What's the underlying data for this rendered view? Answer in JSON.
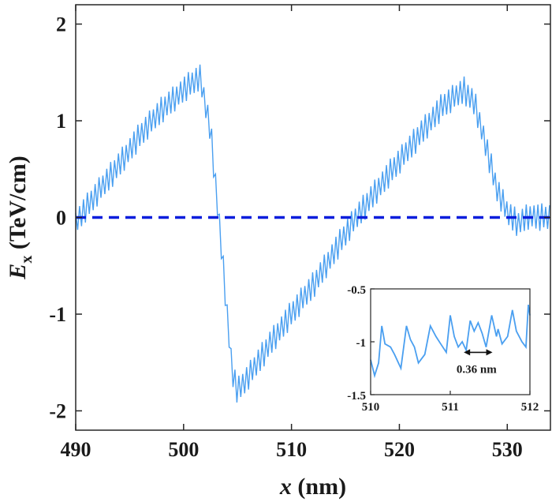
{
  "chart_data": [
    {
      "type": "line",
      "title": "",
      "xlabel": "x (nm)",
      "ylabel": "Ex (TeV/cm)",
      "xlabel_parts": {
        "var": "x",
        "unit": " (nm)"
      },
      "ylabel_parts": {
        "var": "E",
        "sub": "x",
        "unit": " (TeV/cm)"
      },
      "xlim": [
        490,
        534
      ],
      "ylim": [
        -2.2,
        2.2
      ],
      "xticks": [
        490,
        500,
        510,
        520,
        530
      ],
      "yticks": [
        2,
        1,
        0,
        -1,
        -2
      ],
      "xtick_labels": [
        "490",
        "500",
        "510",
        "520",
        "530"
      ],
      "ytick_labels": [
        "2",
        "1",
        "0",
        "-1",
        "-2"
      ],
      "grid": false,
      "series": [
        {
          "style": "solid",
          "color": "#4a9ff0",
          "x": [
            490,
            492,
            494,
            496,
            498,
            500,
            501.5,
            502.5,
            503.5,
            504.5,
            505,
            506,
            508,
            510,
            512,
            514,
            516,
            518,
            520,
            522,
            524,
            526,
            527,
            528,
            529,
            530,
            531,
            532,
            533,
            534
          ],
          "y": [
            -0.05,
            0.25,
            0.55,
            0.85,
            1.12,
            1.32,
            1.45,
            0.9,
            -0.3,
            -1.6,
            -1.8,
            -1.65,
            -1.3,
            -1.0,
            -0.7,
            -0.35,
            0.0,
            0.3,
            0.58,
            0.88,
            1.15,
            1.32,
            1.18,
            0.75,
            0.3,
            0.05,
            -0.06,
            0.02,
            0.0,
            0.0
          ],
          "oscillation_amplitude": 0.15,
          "oscillation_period": 0.36
        },
        {
          "style": "dashed",
          "color": "#0a1edc",
          "x": [
            490,
            534
          ],
          "y": [
            0,
            0
          ]
        }
      ]
    },
    {
      "type": "line",
      "title": "",
      "xlabel": "",
      "ylabel": "",
      "xlim": [
        510,
        512
      ],
      "ylim": [
        -1.5,
        -0.5
      ],
      "xticks": [
        510,
        511,
        512
      ],
      "yticks": [
        -0.5,
        -1,
        -1.5
      ],
      "xtick_labels": [
        "510",
        "511",
        "512"
      ],
      "ytick_labels": [
        "-0.5",
        "-1",
        "-1.5"
      ],
      "grid": false,
      "annotation": "0.36 nm",
      "annotation_span": [
        511.17,
        511.53
      ],
      "series": [
        {
          "style": "solid",
          "color": "#4a9ff0",
          "x": [
            510,
            510.05,
            510.1,
            510.14,
            510.18,
            510.25,
            510.3,
            510.38,
            510.45,
            510.5,
            510.55,
            510.6,
            510.68,
            510.75,
            510.82,
            510.88,
            510.95,
            511,
            511.05,
            511.1,
            511.15,
            511.2,
            511.25,
            511.3,
            511.35,
            511.4,
            511.45,
            511.52,
            511.58,
            511.6,
            511.65,
            511.72,
            511.78,
            511.83,
            511.9,
            511.95,
            511.98,
            512
          ],
          "y": [
            -1.17,
            -1.32,
            -1.2,
            -0.85,
            -1.02,
            -1.05,
            -1.12,
            -1.25,
            -0.85,
            -0.98,
            -1.05,
            -1.2,
            -1.12,
            -0.85,
            -0.95,
            -1.02,
            -1.1,
            -0.75,
            -0.95,
            -1.05,
            -1.0,
            -1.08,
            -0.8,
            -0.9,
            -0.82,
            -0.92,
            -1.05,
            -0.75,
            -0.95,
            -0.88,
            -1.02,
            -0.95,
            -0.7,
            -0.9,
            -1.0,
            -1.05,
            -0.65,
            -0.75
          ]
        }
      ]
    }
  ]
}
